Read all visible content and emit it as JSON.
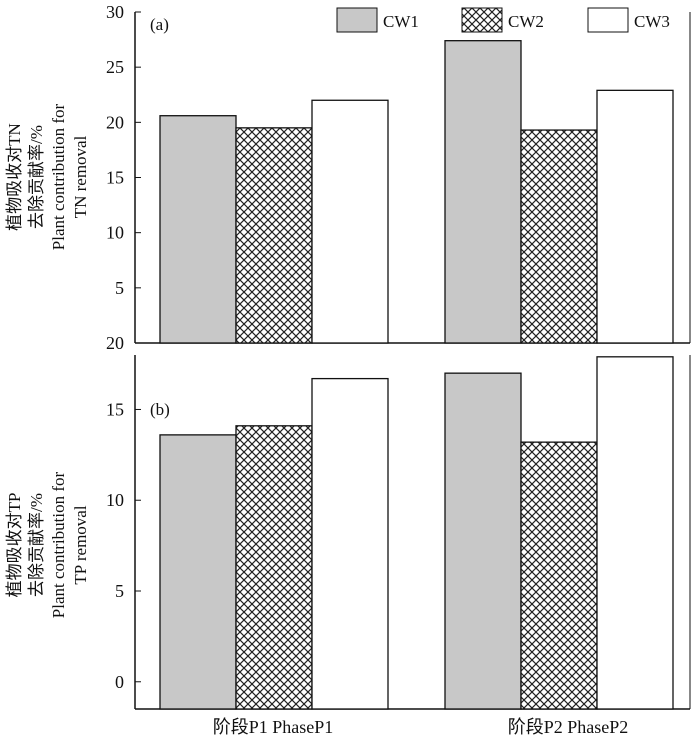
{
  "chart_data": [
    {
      "type": "bar",
      "panel_label": "(a)",
      "categories": [
        "阶段P1 PhaseP1",
        "阶段P2 PhaseP2"
      ],
      "series": [
        {
          "name": "CW1",
          "values": [
            20.6,
            27.4
          ]
        },
        {
          "name": "CW2",
          "values": [
            19.5,
            19.3
          ]
        },
        {
          "name": "CW3",
          "values": [
            22.0,
            22.9
          ]
        }
      ],
      "ylabel_lines": [
        "植物吸收对TN",
        "去除贡献率/%",
        "Plant contribution for",
        "TN removal"
      ],
      "yticks": [
        "5",
        "10",
        "15",
        "20",
        "25",
        "30"
      ],
      "ylim": [
        0,
        30
      ],
      "y_tick_values": [
        5,
        10,
        15,
        20,
        25,
        30
      ],
      "baseline_label": "20",
      "legend_position": "top-right"
    },
    {
      "type": "bar",
      "panel_label": "(b)",
      "categories": [
        "阶段P1 PhaseP1",
        "阶段P2 PhaseP2"
      ],
      "series": [
        {
          "name": "CW1",
          "values": [
            13.6,
            17.0
          ]
        },
        {
          "name": "CW2",
          "values": [
            14.1,
            13.2
          ]
        },
        {
          "name": "CW3",
          "values": [
            16.7,
            17.9
          ]
        }
      ],
      "ylabel_lines": [
        "植物吸收对TP",
        "去除贡献率/%",
        "Plant contribution for",
        "TP removal"
      ],
      "yticks": [
        "0",
        "5",
        "10",
        "15"
      ],
      "ylim": [
        -1.5,
        18
      ],
      "y_tick_values": [
        0,
        5,
        10,
        15
      ]
    }
  ],
  "legend": [
    "CW1",
    "CW2",
    "CW3"
  ],
  "colors": {
    "CW1": "#c8c8c8",
    "CW2": "hatch",
    "CW3": "#ffffff",
    "stroke": "#111111"
  }
}
